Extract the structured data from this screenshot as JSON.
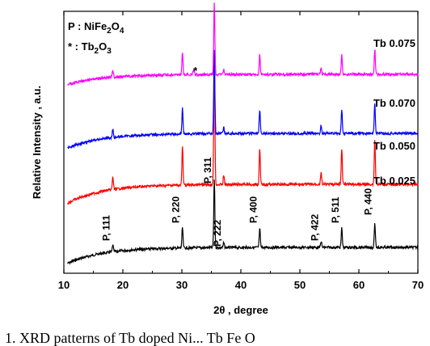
{
  "chart_data": {
    "type": "line",
    "xlabel": "2θ , degree",
    "ylabel": "Relative Intensity , a.u.",
    "xlim": [
      10,
      70
    ],
    "xticks": [
      10,
      20,
      30,
      40,
      50,
      60,
      70
    ],
    "grid": false,
    "legend": {
      "lines": [
        {
          "symbol": "P",
          "sep": " : ",
          "formula": [
            "NiFe",
            "2",
            "O",
            "4"
          ]
        },
        {
          "symbol": "*",
          "sep": " : ",
          "formula": [
            "Tb",
            "2",
            "O",
            "3"
          ]
        }
      ]
    },
    "series": [
      {
        "name": "Tb 0.025",
        "color": "#000000",
        "offset": 0
      },
      {
        "name": "Tb 0.050",
        "color": "#ff0000",
        "offset": 1
      },
      {
        "name": "Tb 0.070",
        "color": "#0000ff",
        "offset": 2
      },
      {
        "name": "Tb 0.075",
        "color": "#ff00ff",
        "offset": 3
      }
    ],
    "peaks": [
      {
        "two_theta": 18.3,
        "label": "P, 111",
        "height": 0.1
      },
      {
        "two_theta": 30.1,
        "label": "P, 220",
        "height": 0.3
      },
      {
        "two_theta": 35.5,
        "label": "P, 311",
        "height": 1.0
      },
      {
        "two_theta": 37.1,
        "label": "P, 222",
        "height": 0.07
      },
      {
        "two_theta": 43.2,
        "label": "P, 400",
        "height": 0.27
      },
      {
        "two_theta": 53.6,
        "label": "P, 422",
        "height": 0.09
      },
      {
        "two_theta": 57.1,
        "label": "P, 511",
        "height": 0.28
      },
      {
        "two_theta": 62.7,
        "label": "P, 440",
        "height": 0.35
      }
    ],
    "impurity_peaks": [
      {
        "two_theta": 32.0,
        "label": "*",
        "series": "Tb 0.075"
      }
    ]
  },
  "caption": "1. XRD patterns of Tb doped Ni... Tb Fe O"
}
